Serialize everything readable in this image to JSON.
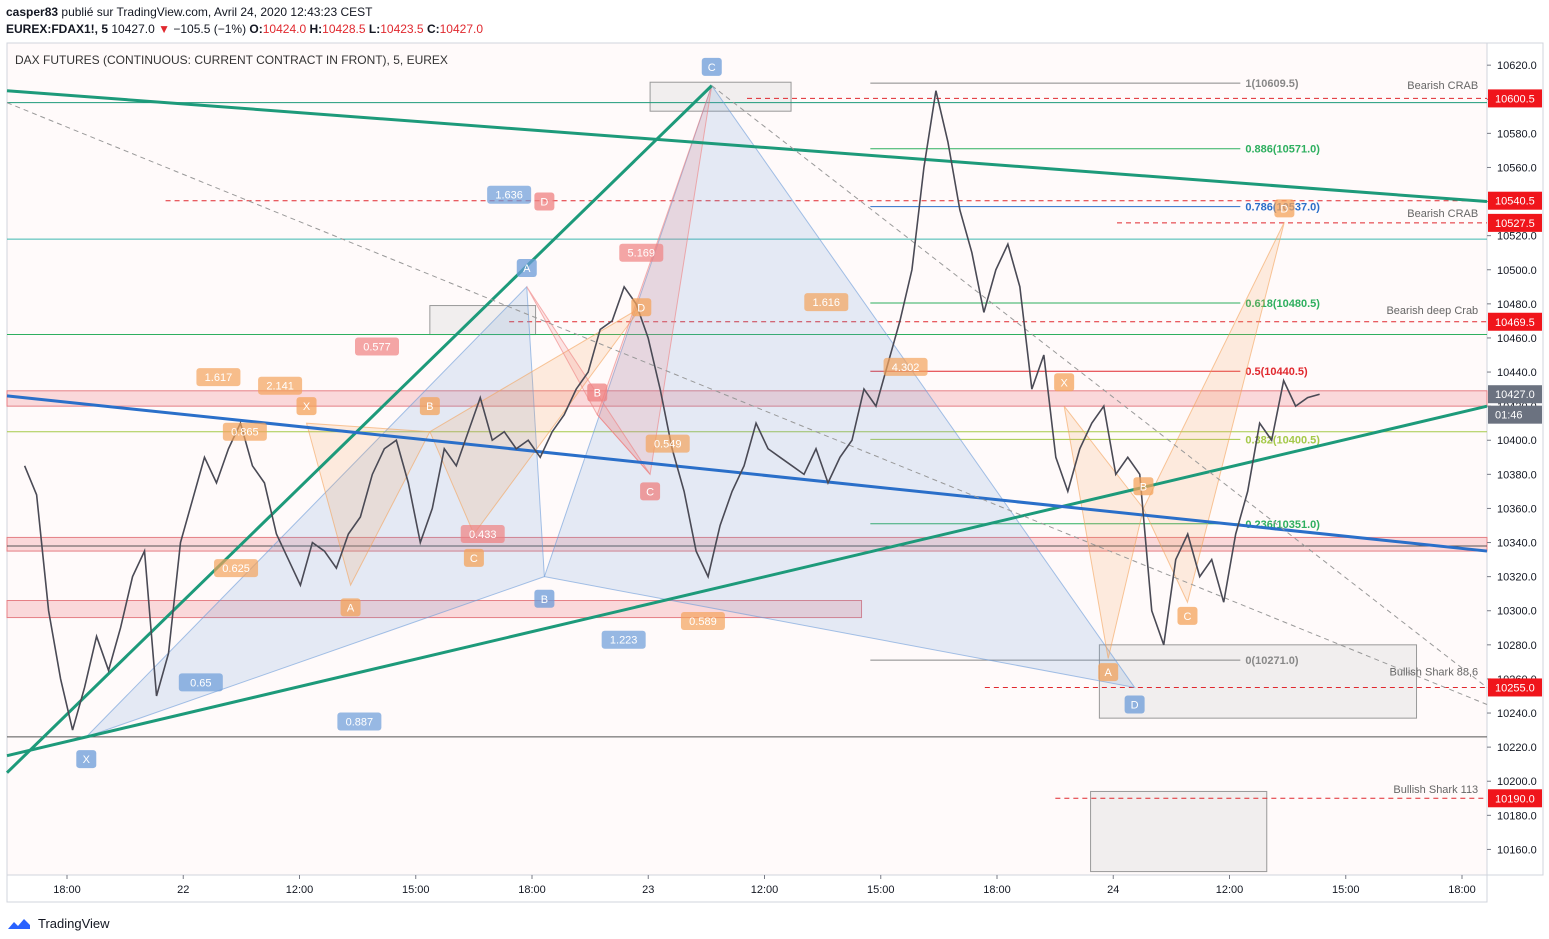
{
  "header": {
    "author": "casper83",
    "published_text": "publié sur TradingView.com, Avril 24, 2020 12:43:23 CEST",
    "symbol": "EUREX:FDAX1!, 5",
    "last": "10427.0",
    "change": "−105.5 (−1%)",
    "o_label": "O:",
    "o": "10424.0",
    "h_label": "H:",
    "h": "10428.5",
    "l_label": "L:",
    "l": "10423.5",
    "c_label": "C:",
    "c": "10427.0"
  },
  "footer": {
    "brand": "TradingView"
  },
  "colors": {
    "up_down": "#e0282e",
    "price_tag": "#f0151b",
    "trend_green": "#1d9a7a",
    "trend_blue": "#2a6fc9",
    "pattern_orange": "#f4a35b",
    "pattern_blue": "#6b9bd8",
    "pattern_red": "#ef8080",
    "fib_green": "#2eaf5f",
    "fib_red": "#e0282e"
  },
  "chart_data": {
    "type": "line",
    "title": "DAX FUTURES (CONTINUOUS: CURRENT CONTRACT IN FRONT), 5, EUREX",
    "ylim": [
      10145,
      10633
    ],
    "y_ticks": [
      10160,
      10180,
      10200,
      10220,
      10240,
      10260,
      10280,
      10300,
      10320,
      10340,
      10360,
      10380,
      10400,
      10420,
      10440,
      10460,
      10480,
      10500,
      10520,
      10540,
      10560,
      10580,
      10600,
      10620
    ],
    "x_ticks": [
      "18:00",
      "22",
      "12:00",
      "15:00",
      "18:00",
      "23",
      "12:00",
      "15:00",
      "18:00",
      "24",
      "12:00",
      "15:00",
      "18:00"
    ],
    "series": [
      {
        "values": [
          [
            0,
            10385
          ],
          [
            1,
            10368
          ],
          [
            2,
            10300
          ],
          [
            3,
            10260
          ],
          [
            4,
            10230
          ],
          [
            5,
            10255
          ],
          [
            6,
            10285
          ],
          [
            7,
            10265
          ],
          [
            8,
            10290
          ],
          [
            9,
            10320
          ],
          [
            10,
            10335
          ],
          [
            11,
            10250
          ],
          [
            12,
            10275
          ],
          [
            13,
            10340
          ],
          [
            14,
            10365
          ],
          [
            15,
            10390
          ],
          [
            16,
            10375
          ],
          [
            17,
            10395
          ],
          [
            18,
            10410
          ],
          [
            19,
            10385
          ],
          [
            20,
            10375
          ],
          [
            21,
            10345
          ],
          [
            22,
            10330
          ],
          [
            23,
            10315
          ],
          [
            24,
            10340
          ],
          [
            25,
            10335
          ],
          [
            26,
            10325
          ],
          [
            27,
            10345
          ],
          [
            28,
            10355
          ],
          [
            29,
            10380
          ],
          [
            30,
            10395
          ],
          [
            31,
            10400
          ],
          [
            32,
            10375
          ],
          [
            33,
            10340
          ],
          [
            34,
            10360
          ],
          [
            35,
            10395
          ],
          [
            36,
            10385
          ],
          [
            37,
            10405
          ],
          [
            38,
            10425
          ],
          [
            39,
            10400
          ],
          [
            40,
            10405
          ],
          [
            41,
            10395
          ],
          [
            42,
            10400
          ],
          [
            43,
            10390
          ],
          [
            44,
            10405
          ],
          [
            45,
            10415
          ],
          [
            46,
            10430
          ],
          [
            47,
            10440
          ],
          [
            48,
            10465
          ],
          [
            49,
            10470
          ],
          [
            50,
            10490
          ],
          [
            51,
            10480
          ],
          [
            52,
            10460
          ],
          [
            53,
            10430
          ],
          [
            54,
            10395
          ],
          [
            55,
            10370
          ],
          [
            56,
            10335
          ],
          [
            57,
            10320
          ],
          [
            58,
            10350
          ],
          [
            59,
            10370
          ],
          [
            60,
            10385
          ],
          [
            61,
            10410
          ],
          [
            62,
            10395
          ],
          [
            63,
            10390
          ],
          [
            64,
            10385
          ],
          [
            65,
            10380
          ],
          [
            66,
            10395
          ],
          [
            67,
            10375
          ],
          [
            68,
            10390
          ],
          [
            69,
            10400
          ],
          [
            70,
            10430
          ],
          [
            71,
            10420
          ],
          [
            72,
            10445
          ],
          [
            73,
            10470
          ],
          [
            74,
            10500
          ],
          [
            75,
            10560
          ],
          [
            76,
            10605
          ],
          [
            77,
            10575
          ],
          [
            78,
            10535
          ],
          [
            79,
            10510
          ],
          [
            80,
            10475
          ],
          [
            81,
            10500
          ],
          [
            82,
            10515
          ],
          [
            83,
            10490
          ],
          [
            84,
            10430
          ],
          [
            85,
            10450
          ],
          [
            86,
            10390
          ],
          [
            87,
            10370
          ],
          [
            88,
            10395
          ],
          [
            89,
            10410
          ],
          [
            90,
            10420
          ],
          [
            91,
            10380
          ],
          [
            92,
            10390
          ],
          [
            93,
            10380
          ],
          [
            94,
            10300
          ],
          [
            95,
            10280
          ],
          [
            96,
            10330
          ],
          [
            97,
            10345
          ],
          [
            98,
            10320
          ],
          [
            99,
            10330
          ],
          [
            100,
            10305
          ],
          [
            101,
            10345
          ],
          [
            102,
            10370
          ],
          [
            103,
            10410
          ],
          [
            104,
            10400
          ],
          [
            105,
            10435
          ],
          [
            106,
            10420
          ],
          [
            107,
            10425
          ],
          [
            108,
            10427
          ]
        ]
      }
    ],
    "trendlines": [
      {
        "from": [
          -4,
          10605
        ],
        "to": [
          164,
          10540
        ],
        "color": "#1d9a7a"
      },
      {
        "from": [
          -4,
          10205
        ],
        "to": [
          76,
          10608
        ],
        "color": "#1d9a7a"
      },
      {
        "from": [
          -4,
          10215
        ],
        "to": [
          164,
          10420
        ],
        "color": "#1d9a7a"
      },
      {
        "from": [
          -4,
          10426
        ],
        "to": [
          164,
          10335
        ],
        "color": "#2a6fc9"
      },
      {
        "from": [
          -4,
          10598
        ],
        "to": [
          164,
          10245
        ],
        "color": "#999999",
        "dashed": true
      },
      {
        "from": [
          76,
          10608
        ],
        "to": [
          164,
          10255
        ],
        "color": "#999999",
        "dashed": true
      }
    ],
    "horizontal_lines": [
      {
        "y": 10598,
        "color": "#1d9a7a"
      },
      {
        "y": 10518,
        "color": "#3fb8b0"
      },
      {
        "y": 10462,
        "color": "#2eaf5f"
      },
      {
        "y": 10405,
        "color": "#a5c94a"
      },
      {
        "y": 10338,
        "color": "#555555"
      },
      {
        "y": 10226,
        "color": "#555555"
      }
    ],
    "zones": [
      {
        "x": [
          -4,
          164
        ],
        "y": [
          10420,
          10429
        ],
        "color": "#f5b0b4"
      },
      {
        "x": [
          -4,
          164
        ],
        "y": [
          10335,
          10343
        ],
        "color": "#f5b0b4"
      },
      {
        "x": [
          -4,
          93
        ],
        "y": [
          10296,
          10306
        ],
        "color": "#f5b0b4"
      }
    ],
    "boxes": [
      {
        "x": [
          69,
          85
        ],
        "y": [
          10593,
          10610
        ]
      },
      {
        "x": [
          44,
          56
        ],
        "y": [
          10462,
          10479
        ]
      },
      {
        "x": [
          120,
          156
        ],
        "y": [
          10237,
          10280
        ]
      },
      {
        "x": [
          119,
          139
        ],
        "y": [
          10147,
          10194
        ]
      }
    ],
    "price_tags": [
      {
        "label": "10600.5",
        "y": 10600.5,
        "kind": "level",
        "color": "#f0151b"
      },
      {
        "label": "10540.5",
        "y": 10540.5,
        "kind": "level",
        "color": "#f0151b"
      },
      {
        "label": "10527.5",
        "y": 10527.5,
        "kind": "level",
        "color": "#f0151b"
      },
      {
        "label": "10469.5",
        "y": 10469.5,
        "kind": "level",
        "color": "#f0151b"
      },
      {
        "label": "10427.0",
        "y": 10427.0,
        "kind": "last",
        "color": "#6b7280"
      },
      {
        "label": "01:46",
        "y": 10415,
        "kind": "countdown",
        "color": "#6b7280"
      },
      {
        "label": "10255.0",
        "y": 10255.0,
        "kind": "level",
        "color": "#f0151b"
      },
      {
        "label": "10190.0",
        "y": 10190.0,
        "kind": "level",
        "color": "#f0151b"
      }
    ],
    "fib_levels": [
      {
        "label": "1(10609.5)",
        "y": 10609.5,
        "color": "#888888"
      },
      {
        "label": "0.886(10571.0)",
        "y": 10571.0,
        "color": "#2eaf5f"
      },
      {
        "label": "0.786(10537.0)",
        "y": 10537.0,
        "color": "#2a6fc9"
      },
      {
        "label": "0.618(10480.5)",
        "y": 10480.5,
        "color": "#2eaf5f"
      },
      {
        "label": "0.5(10440.5)",
        "y": 10440.5,
        "color": "#e0282e"
      },
      {
        "label": "0.382(10400.5)",
        "y": 10400.5,
        "color": "#a5c94a"
      },
      {
        "label": "0.236(10351.0)",
        "y": 10351.0,
        "color": "#2eaf5f"
      },
      {
        "label": "0(10271.0)",
        "y": 10271.0,
        "color": "#888888"
      }
    ],
    "dashed_levels": [
      {
        "y": 10600.5,
        "x_from": 80
      },
      {
        "y": 10540.5,
        "x_from": 14
      },
      {
        "y": 10527.5,
        "x_from": 122
      },
      {
        "y": 10469.5,
        "x_from": 53
      },
      {
        "y": 10255.0,
        "x_from": 107
      },
      {
        "y": 10190.0,
        "x_from": 115
      }
    ],
    "annotations": [
      {
        "text": "Bearish CRAB",
        "x": 163,
        "y": 10606
      },
      {
        "text": "Bearish CRAB",
        "x": 163,
        "y": 10531
      },
      {
        "text": "Bearish deep Crab",
        "x": 163,
        "y": 10474
      },
      {
        "text": "Bullish Shark 88,6",
        "x": 163,
        "y": 10262
      },
      {
        "text": "Bullish Shark 113",
        "x": 163,
        "y": 10193
      }
    ],
    "pattern_labels": [
      {
        "text": "X",
        "x": 5,
        "y": 10213,
        "color": "#6b9bd8"
      },
      {
        "text": "A",
        "x": 55,
        "y": 10501,
        "color": "#6b9bd8"
      },
      {
        "text": "B",
        "x": 57,
        "y": 10307,
        "color": "#6b9bd8"
      },
      {
        "text": "C",
        "x": 76,
        "y": 10619,
        "color": "#6b9bd8"
      },
      {
        "text": "D",
        "x": 124,
        "y": 10245,
        "color": "#6b9bd8"
      },
      {
        "text": "X",
        "x": 30,
        "y": 10420,
        "color": "#f4a35b"
      },
      {
        "text": "A",
        "x": 35,
        "y": 10302,
        "color": "#f4a35b"
      },
      {
        "text": "B",
        "x": 44,
        "y": 10420,
        "color": "#f4a35b"
      },
      {
        "text": "C",
        "x": 49,
        "y": 10331,
        "color": "#f4a35b"
      },
      {
        "text": "D",
        "x": 68,
        "y": 10478,
        "color": "#f4a35b"
      },
      {
        "text": "B",
        "x": 63,
        "y": 10428,
        "color": "#ef8080"
      },
      {
        "text": "C",
        "x": 69,
        "y": 10370,
        "color": "#ef8080"
      },
      {
        "text": "D",
        "x": 57,
        "y": 10540,
        "color": "#ef8080"
      },
      {
        "text": "X",
        "x": 116,
        "y": 10434,
        "color": "#f4a35b"
      },
      {
        "text": "A",
        "x": 121,
        "y": 10264,
        "color": "#f4a35b"
      },
      {
        "text": "B",
        "x": 125,
        "y": 10373,
        "color": "#f4a35b"
      },
      {
        "text": "C",
        "x": 130,
        "y": 10297,
        "color": "#f4a35b"
      },
      {
        "text": "D",
        "x": 141,
        "y": 10536,
        "color": "#f4a35b"
      }
    ],
    "ratio_labels": [
      {
        "text": "1.636",
        "x": 53,
        "y": 10544,
        "color": "#6b9bd8"
      },
      {
        "text": "5.169",
        "x": 68,
        "y": 10510,
        "color": "#ef8080"
      },
      {
        "text": "1.617",
        "x": 20,
        "y": 10437,
        "color": "#f4a35b"
      },
      {
        "text": "2.141",
        "x": 27,
        "y": 10432,
        "color": "#f4a35b"
      },
      {
        "text": "0.865",
        "x": 23,
        "y": 10405,
        "color": "#f4a35b"
      },
      {
        "text": "0.577",
        "x": 38,
        "y": 10455,
        "color": "#ef8080"
      },
      {
        "text": "0.625",
        "x": 22,
        "y": 10325,
        "color": "#f4a35b"
      },
      {
        "text": "0.433",
        "x": 50,
        "y": 10345,
        "color": "#ef8080"
      },
      {
        "text": "0.65",
        "x": 18,
        "y": 10258,
        "color": "#6b9bd8"
      },
      {
        "text": "1.223",
        "x": 66,
        "y": 10283,
        "color": "#6b9bd8"
      },
      {
        "text": "0.887",
        "x": 36,
        "y": 10235,
        "color": "#6b9bd8"
      },
      {
        "text": "1.616",
        "x": 89,
        "y": 10481,
        "color": "#f4a35b"
      },
      {
        "text": "4.302",
        "x": 98,
        "y": 10443,
        "color": "#f4a35b"
      },
      {
        "text": "0.549",
        "x": 71,
        "y": 10398,
        "color": "#f4a35b"
      },
      {
        "text": "0.589",
        "x": 75,
        "y": 10294,
        "color": "#f4a35b"
      }
    ]
  }
}
